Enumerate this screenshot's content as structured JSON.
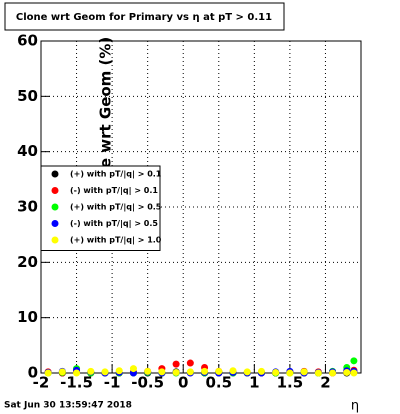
{
  "chart_data": {
    "type": "scatter",
    "title": "Clone wrt Geom for Primary vs  η at pT > 0.11",
    "y_label": "Clone wrt Geom (%)",
    "x_label": "η",
    "footer": "Sat Jun 30 13:59:47 2018",
    "x": [
      -1.9,
      -1.7,
      -1.5,
      -1.3,
      -1.1,
      -0.9,
      -0.7,
      -0.5,
      -0.3,
      -0.1,
      0.1,
      0.3,
      0.5,
      0.7,
      0.9,
      1.1,
      1.3,
      1.5,
      1.7,
      1.9,
      2.1,
      2.3,
      2.4
    ],
    "series": [
      {
        "name": "(+) with pT/|q| > 0.1",
        "color": "#000000",
        "values": [
          0.1,
          0,
          0.2,
          0,
          0,
          0,
          0.1,
          0,
          0,
          0.2,
          0.1,
          0,
          0,
          0,
          0.1,
          0,
          0,
          0.1,
          0,
          0,
          0.1,
          0,
          0.2
        ]
      },
      {
        "name": "(-) with pT/|q| > 0.1",
        "color": "#ff0000",
        "values": [
          0.2,
          0,
          0.3,
          0,
          0.1,
          0,
          0.2,
          0.3,
          0.8,
          1.6,
          1.8,
          1.0,
          0.3,
          0.2,
          0,
          0.1,
          0,
          0.2,
          0.3,
          0.2,
          0,
          0.3,
          0.5
        ]
      },
      {
        "name": "(+) with pT/|q| > 0.5",
        "color": "#00ff00",
        "values": [
          0,
          0.1,
          0.8,
          0,
          0.1,
          0,
          0,
          0.1,
          0,
          0,
          0.1,
          0,
          0.2,
          0,
          0,
          0.1,
          0,
          0,
          0.2,
          0,
          0.3,
          1.0,
          2.2
        ]
      },
      {
        "name": "(-) with pT/|q| > 0.5",
        "color": "#0000ff",
        "values": [
          0.1,
          0.3,
          0.5,
          0.2,
          0,
          0.1,
          0,
          0.2,
          0,
          0.1,
          0,
          0.1,
          0,
          0.1,
          0,
          0,
          0.2,
          0.3,
          0,
          0.1,
          0.2,
          0.4,
          0.3
        ]
      },
      {
        "name": "(+) with pT/|q| > 1.0",
        "color": "#ffff00",
        "values": [
          0,
          0.2,
          0,
          0.3,
          0.2,
          0.4,
          0.8,
          0.3,
          0.2,
          0.1,
          0.2,
          0.3,
          0.3,
          0.4,
          0.2,
          0.3,
          0.1,
          0,
          0.2,
          0,
          0,
          0.1,
          0
        ]
      }
    ],
    "xlim": [
      -2,
      2.5
    ],
    "xticks": [
      -2,
      -1.5,
      -1,
      -0.5,
      0,
      0.5,
      1,
      1.5,
      2
    ],
    "ylim": [
      0,
      60
    ],
    "yticks": [
      0,
      10,
      20,
      30,
      40,
      50,
      60
    ],
    "grid": true,
    "legend": "left"
  }
}
